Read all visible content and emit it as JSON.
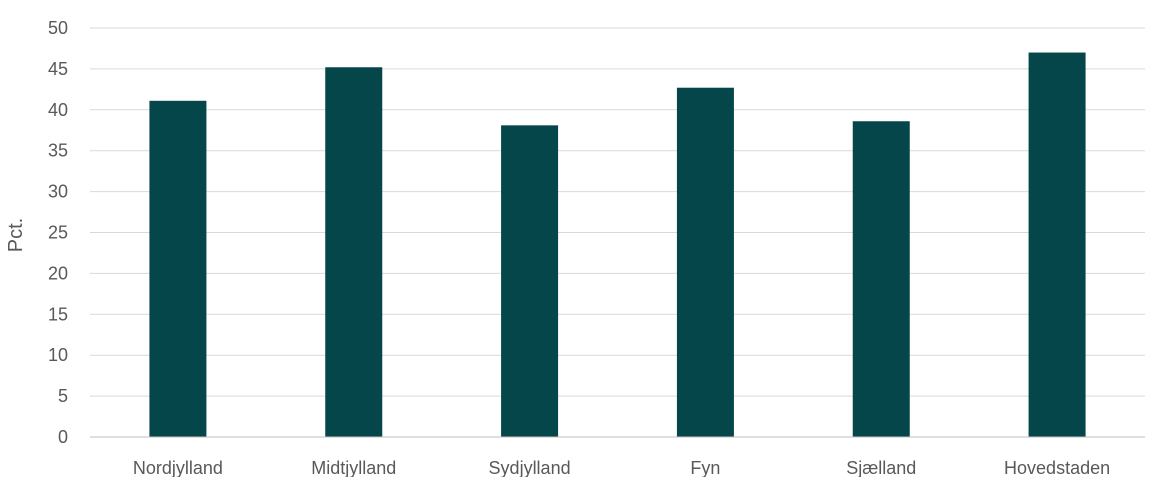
{
  "chart_data": {
    "type": "bar",
    "title": "",
    "xlabel": "",
    "ylabel": "Pct.",
    "ylim": [
      0,
      50
    ],
    "yticks": [
      0,
      5,
      10,
      15,
      20,
      25,
      30,
      35,
      40,
      45,
      50
    ],
    "categories": [
      "Nordjylland",
      "Midtjylland",
      "Sydjylland",
      "Fyn",
      "Sjælland",
      "Hovedstaden"
    ],
    "values": [
      41.1,
      45.2,
      38.1,
      42.7,
      38.6,
      47.0
    ],
    "grid": true,
    "legend": "none",
    "colors": {
      "bar": "#04464a",
      "grid": "#d9d9d9",
      "axis": "#bfbfbf",
      "text": "#595959"
    }
  }
}
